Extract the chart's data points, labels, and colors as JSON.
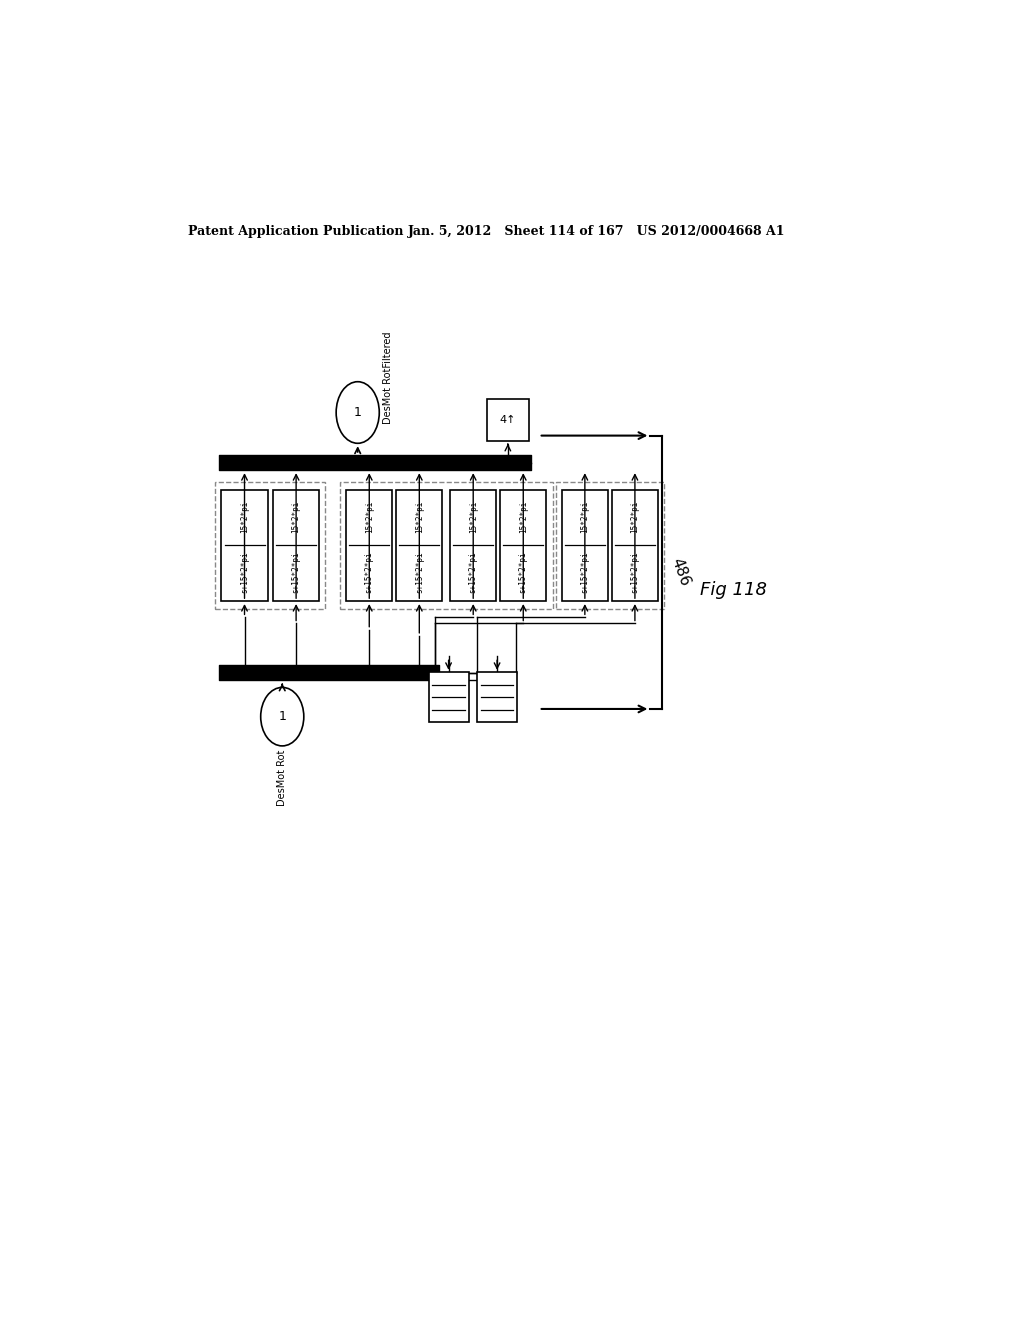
{
  "header_left": "Patent Application Publication",
  "header_mid": "Jan. 5, 2012   Sheet 114 of 167   US 2012/0004668 A1",
  "fig_label": "Fig 118",
  "bracket_label": "486",
  "top_oval_text": "DesMot RotFiltered",
  "top_oval_val": "1",
  "bot_oval_text": "DesMot Rot",
  "bot_oval_val": "1",
  "block_text1": "15*2*pi",
  "block_text2": "s+15*2*pi",
  "bg_color": "#ffffff"
}
